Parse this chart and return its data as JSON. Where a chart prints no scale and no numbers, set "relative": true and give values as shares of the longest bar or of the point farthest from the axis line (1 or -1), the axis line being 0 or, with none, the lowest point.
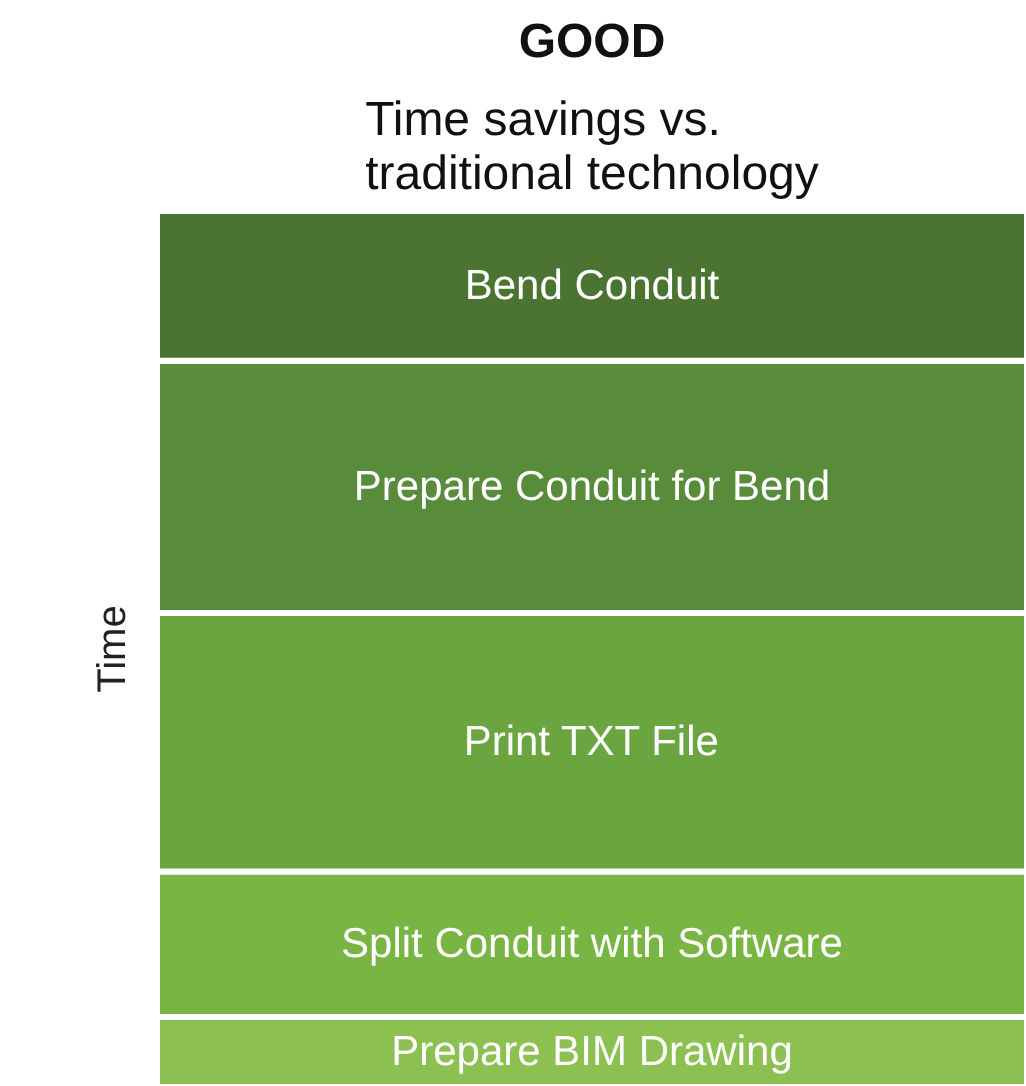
{
  "chart_data": {
    "type": "bar",
    "stacked": true,
    "relative": true,
    "title": "GOOD",
    "subtitle": "Time savings vs.\ntraditional technology",
    "ylabel": "Time",
    "categories": [
      null
    ],
    "series": [
      {
        "name": "Prepare BIM Drawing",
        "color": "#8cc152",
        "values": [
          0.08
        ]
      },
      {
        "name": "Split Conduit with Software",
        "color": "#78b543",
        "values": [
          0.166
        ]
      },
      {
        "name": "Print TXT File",
        "color": "#6aa540",
        "values": [
          0.295
        ]
      },
      {
        "name": "Prepare Conduit for Bend",
        "color": "#588c3a",
        "values": [
          0.288
        ]
      },
      {
        "name": "Bend Conduit",
        "color": "#4b7432",
        "values": [
          0.171
        ]
      }
    ]
  }
}
